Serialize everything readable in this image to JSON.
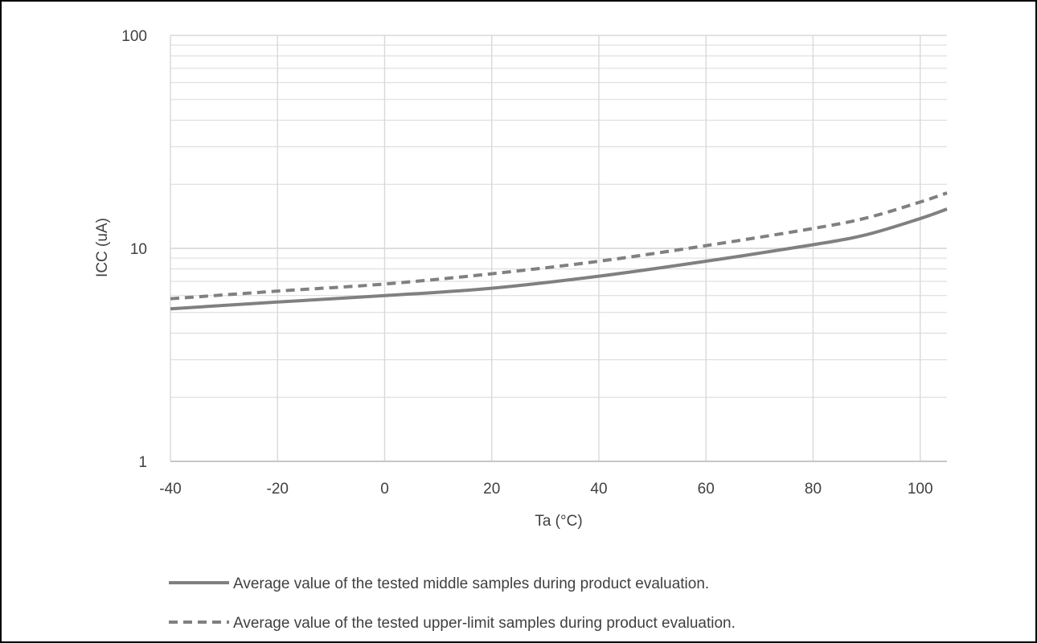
{
  "chart_data": {
    "type": "line",
    "title": "",
    "xlabel": "Ta (°C)",
    "ylabel": "ICC (uA)",
    "xlim": [
      -40,
      105
    ],
    "ylim": [
      1,
      100
    ],
    "yscale": "log",
    "grid": true,
    "legend_position": "bottom",
    "x_ticks": [
      "-40",
      "-20",
      "0",
      "20",
      "40",
      "60",
      "80",
      "100"
    ],
    "y_ticks": [
      "1",
      "10",
      "100"
    ],
    "series": [
      {
        "name": "Average value of the tested middle samples during product evaluation.",
        "line_style": "solid",
        "color": "#808080",
        "x": [
          -40,
          -20,
          0,
          20,
          40,
          60,
          80,
          90,
          100,
          105
        ],
        "y": [
          5.2,
          5.6,
          6.0,
          6.5,
          7.4,
          8.7,
          10.4,
          11.6,
          13.8,
          15.3
        ]
      },
      {
        "name": "Average value of the tested upper-limit samples during product evaluation.",
        "line_style": "dashed",
        "color": "#808080",
        "x": [
          -40,
          -20,
          0,
          20,
          40,
          60,
          80,
          90,
          100,
          105
        ],
        "y": [
          5.8,
          6.3,
          6.8,
          7.6,
          8.7,
          10.3,
          12.4,
          13.9,
          16.5,
          18.2
        ]
      }
    ]
  },
  "colors": {
    "gridline": "#d9d9d9",
    "axis": "#bfbfbf",
    "text": "#404040",
    "frame": "#000000"
  }
}
